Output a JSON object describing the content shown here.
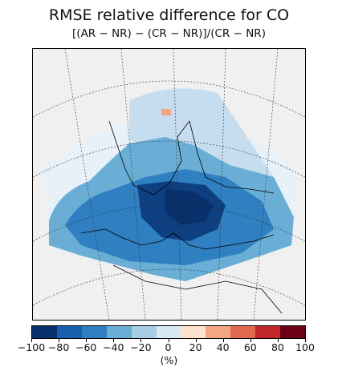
{
  "title": "RMSE relative difference for CO",
  "subtitle": "[(AR − NR) − (CR − NR)]/(CR − NR)",
  "colorbar": {
    "ticks": [
      "−100",
      "−80",
      "−60",
      "−40",
      "−20",
      "0",
      "20",
      "40",
      "60",
      "80",
      "100"
    ],
    "unit": "(%)",
    "colors": [
      "#08306b",
      "#1a60ad",
      "#2f7fc1",
      "#6aaed6",
      "#a7cde4",
      "#d6e8f2",
      "#fde0ce",
      "#f4a582",
      "#e0684f",
      "#c2272d",
      "#6b0016"
    ]
  },
  "map": {
    "background": "#f0f0f0",
    "domain_fill": "#e8f1f8",
    "ocean_fill": "#2f7fc1",
    "land_fill": "#1a60ad",
    "core_fill": "#08306b",
    "north_fill": "#a7cde4"
  }
}
